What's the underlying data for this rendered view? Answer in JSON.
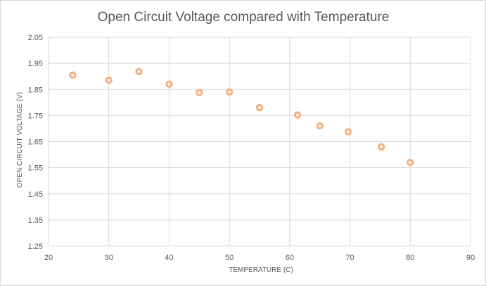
{
  "chart_data": {
    "type": "scatter",
    "title": "Open Circuit Voltage compared with Temperature",
    "xlabel": "TEMPERATURE (C)",
    "ylabel": "OPEN CIRCUIT VOLTAGE (V)",
    "xlim": [
      20,
      90
    ],
    "ylim": [
      1.25,
      2.05
    ],
    "x_ticks": [
      "20",
      "30",
      "40",
      "50",
      "60",
      "70",
      "80",
      "90"
    ],
    "y_ticks": [
      "2.05",
      "1.95",
      "1.85",
      "1.75",
      "1.65",
      "1.55",
      "1.45",
      "1.35",
      "1.25"
    ],
    "grid": true,
    "marker_color": "#f4b183",
    "series": [
      {
        "points": [
          {
            "x": 24,
            "y": 1.905
          },
          {
            "x": 30,
            "y": 1.885
          },
          {
            "x": 35,
            "y": 1.918
          },
          {
            "x": 40,
            "y": 1.87
          },
          {
            "x": 45,
            "y": 1.838
          },
          {
            "x": 50,
            "y": 1.84
          },
          {
            "x": 55,
            "y": 1.78
          },
          {
            "x": 61.3,
            "y": 1.752
          },
          {
            "x": 65,
            "y": 1.71
          },
          {
            "x": 69.7,
            "y": 1.688
          },
          {
            "x": 75.2,
            "y": 1.63
          },
          {
            "x": 80,
            "y": 1.57
          }
        ]
      }
    ]
  }
}
